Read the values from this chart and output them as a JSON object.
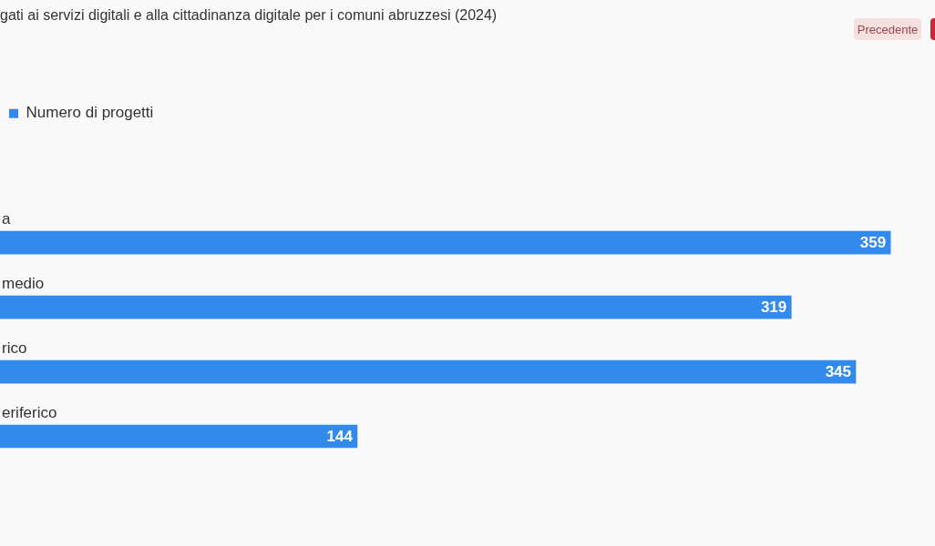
{
  "chart_data": {
    "type": "bar",
    "orientation": "horizontal",
    "title": "gati ai servizi digitali e alla cittadinanza digitale per i comuni abruzzesi (2024)",
    "categories": [
      "a",
      "medio",
      "rico",
      "eriferico"
    ],
    "series": [
      {
        "name": "Numero di progetti",
        "color": "#338aed",
        "values": [
          359,
          319,
          345,
          144
        ]
      }
    ],
    "data_labels": true,
    "legend": "top left",
    "tick_labels": "y",
    "annotations": [
      "Precedente"
    ]
  }
}
